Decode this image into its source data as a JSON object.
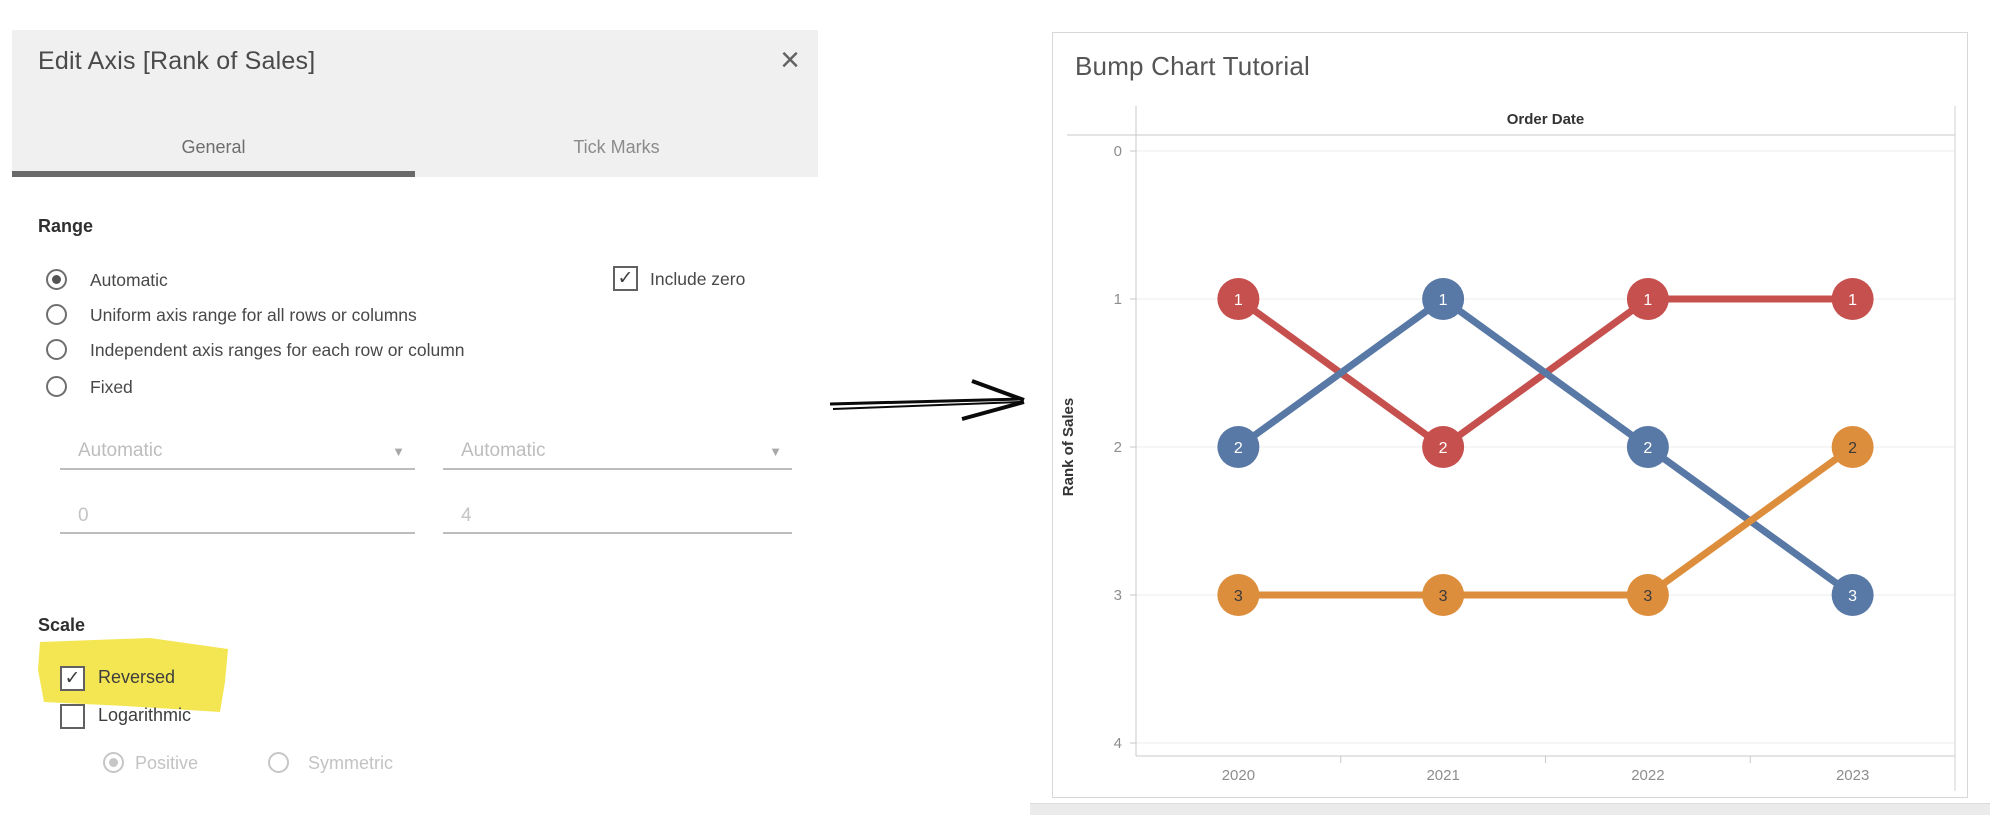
{
  "icons": {
    "close": "×",
    "check": "✓",
    "dropdown_arrow": "▼"
  },
  "dialog": {
    "title": "Edit Axis [Rank of Sales]",
    "tabs": [
      {
        "label": "General",
        "active": true
      },
      {
        "label": "Tick Marks",
        "active": false
      }
    ],
    "range": {
      "heading": "Range",
      "options": [
        {
          "label": "Automatic",
          "selected": true
        },
        {
          "label": "Uniform axis range for all rows or columns",
          "selected": false
        },
        {
          "label": "Independent axis ranges for each row or column",
          "selected": false
        },
        {
          "label": "Fixed",
          "selected": false
        }
      ],
      "include_zero": {
        "label": "Include zero",
        "checked": true
      },
      "from_dropdown": {
        "value": "Automatic",
        "disabled": true
      },
      "to_dropdown": {
        "value": "Automatic",
        "disabled": true
      },
      "from_input": {
        "value": "0",
        "disabled": true
      },
      "to_input": {
        "value": "4",
        "disabled": true
      }
    },
    "scale": {
      "heading": "Scale",
      "reversed": {
        "label": "Reversed",
        "checked": true,
        "highlighted": true
      },
      "logarithmic": {
        "label": "Logarithmic",
        "checked": false
      },
      "log_mode": [
        {
          "label": "Positive",
          "selected": true,
          "disabled": true
        },
        {
          "label": "Symmetric",
          "selected": false,
          "disabled": true
        }
      ],
      "highlight_color": "#f3e23a"
    }
  },
  "chart_data": {
    "type": "line",
    "title": "Bump Chart Tutorial",
    "xlabel": "Order Date",
    "ylabel": "Rank of Sales",
    "categories": [
      "2020",
      "2021",
      "2022",
      "2023"
    ],
    "series": [
      {
        "name": "red-series",
        "color": "#c5504e",
        "label_color": "#ffffff",
        "values": [
          1,
          2,
          1,
          1
        ]
      },
      {
        "name": "blue-series",
        "color": "#5878a5",
        "label_color": "#ffffff",
        "values": [
          2,
          1,
          2,
          3
        ]
      },
      {
        "name": "orange-series",
        "color": "#dd8e3d",
        "label_color": "#3a3a3a",
        "values": [
          3,
          3,
          3,
          2
        ]
      }
    ],
    "y_ticks": [
      0,
      1,
      2,
      3,
      4
    ],
    "ylim": [
      0,
      4
    ],
    "y_axis_reversed": true,
    "grid": true,
    "legend": "none",
    "marker_data_labels": true
  }
}
